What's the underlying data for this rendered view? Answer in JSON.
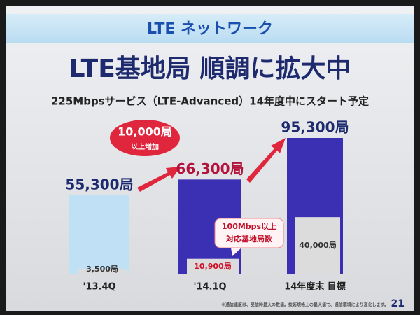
{
  "chart_data": {
    "type": "bar",
    "header": "LTE ネットワーク",
    "title": "LTE基地局 順調に拡大中",
    "subtitle": "225Mbpsサービス（LTE-Advanced）14年度中にスタート予定",
    "categories": [
      "'13.4Q",
      "'14.1Q",
      "14年度末 目標"
    ],
    "series": [
      {
        "colors": [
          "#bfe0f5",
          "#3b2fb3",
          "#3b2fb3"
        ],
        "values": [
          55300,
          66300,
          95300
        ],
        "value_labels": [
          "55,300局",
          "66,300局",
          "95,300局"
        ],
        "label_colors": [
          "#1e2a6e",
          "#b3123a",
          "#1e2a6e"
        ]
      },
      {
        "color": "#dcdcdc",
        "values": [
          3500,
          10900,
          40000
        ],
        "value_labels": [
          "3,500局",
          "10,900局",
          "40,000局"
        ],
        "label_colors": [
          "#333333",
          "#d0102a",
          "#333333"
        ]
      }
    ],
    "badge": [
      "10,000局",
      "以上増加"
    ],
    "callout": [
      "100Mbps以上",
      "対応基地局数"
    ],
    "footnote": "※通信速度は、受信時最大の数値。技術規格上の最大値で、通信環境により変化します。",
    "page_number": "21"
  }
}
